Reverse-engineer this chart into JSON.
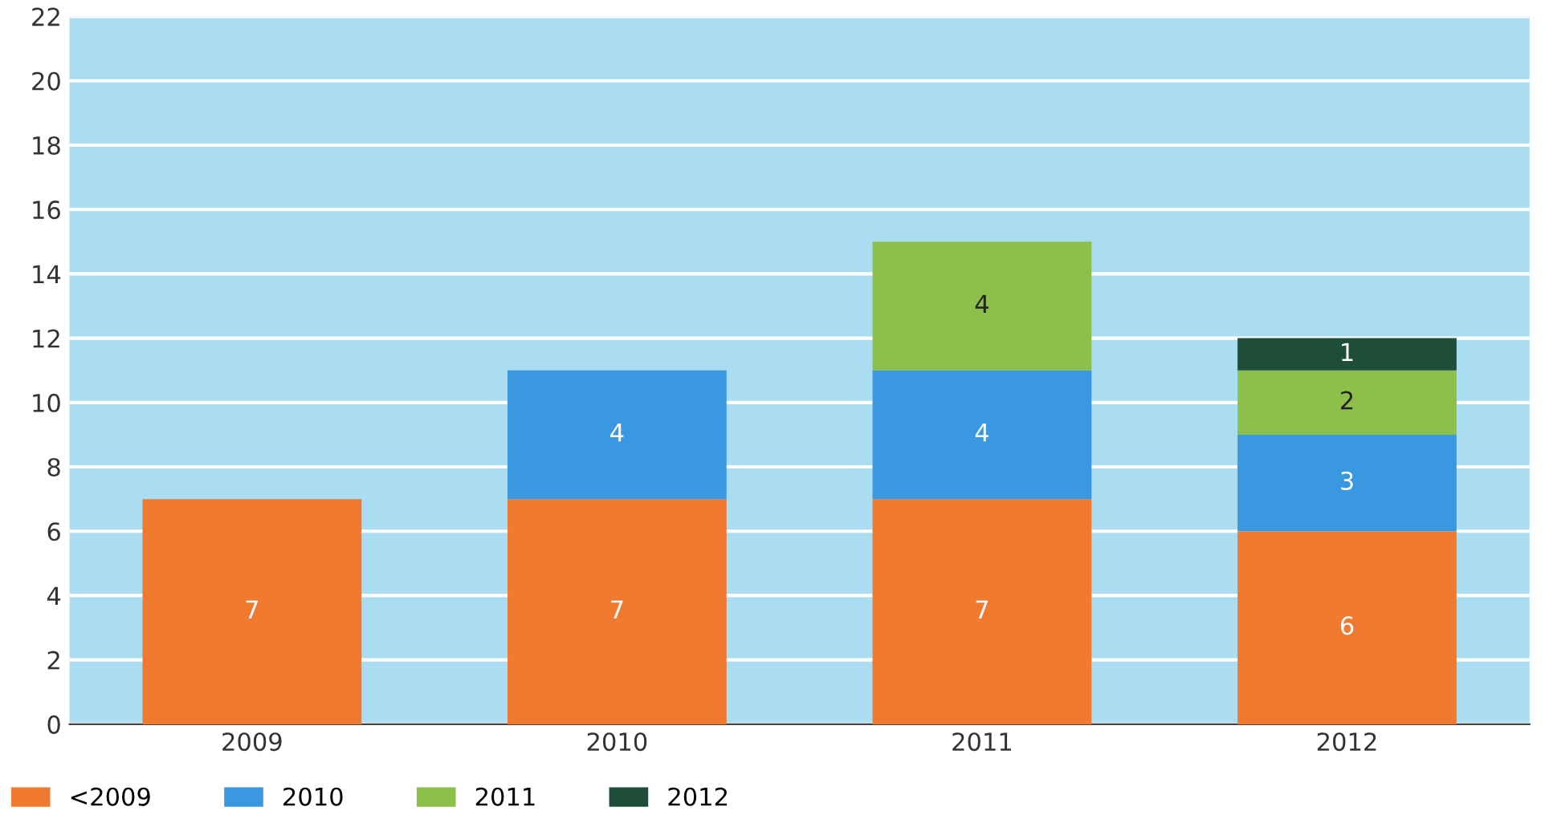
{
  "chart_data": {
    "type": "bar",
    "stacked": true,
    "categories": [
      "2009",
      "2010",
      "2011",
      "2012"
    ],
    "series": [
      {
        "name": "<2009",
        "color": "#f07a30",
        "values": [
          7,
          7,
          7,
          6
        ]
      },
      {
        "name": "2010",
        "color": "#3a98e0",
        "values": [
          null,
          4,
          4,
          3
        ]
      },
      {
        "name": "2011",
        "color": "#8cc04a",
        "values": [
          null,
          null,
          4,
          2
        ]
      },
      {
        "name": "2012",
        "color": "#1e4d3a",
        "values": [
          null,
          null,
          null,
          1
        ]
      }
    ],
    "ylim": [
      0,
      22
    ],
    "yticks": [
      0,
      2,
      4,
      6,
      8,
      10,
      12,
      14,
      16,
      18,
      20,
      22
    ],
    "grid": "y",
    "legend": "bottom left",
    "data_labels": true
  }
}
